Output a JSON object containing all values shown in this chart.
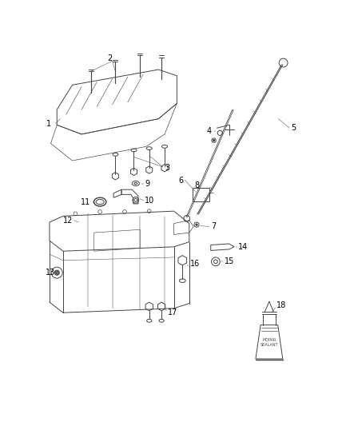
{
  "bg_color": "#ffffff",
  "line_color": "#444444",
  "label_color": "#000000",
  "fig_width": 4.38,
  "fig_height": 5.33,
  "dpi": 100
}
